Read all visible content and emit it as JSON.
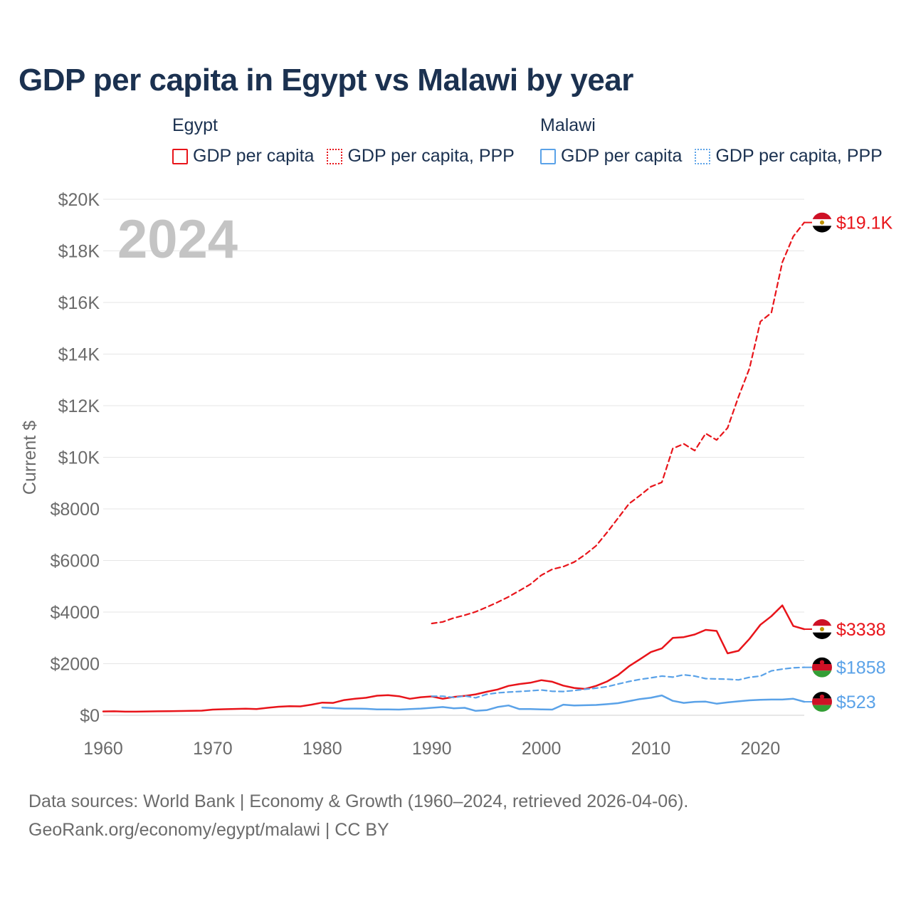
{
  "title": "GDP per capita in Egypt vs Malawi by year",
  "colors": {
    "egypt": "#e8141a",
    "malawi": "#5aa2e8",
    "axis_text": "#6b6b6b",
    "title": "#1b3150",
    "year_watermark": "#c4c4c4"
  },
  "legend": {
    "groups": [
      {
        "name": "Egypt",
        "items": [
          {
            "label": "GDP per capita",
            "style": "solid"
          },
          {
            "label": "GDP per capita, PPP",
            "style": "dotted"
          }
        ]
      },
      {
        "name": "Malawi",
        "items": [
          {
            "label": "GDP per capita",
            "style": "solid"
          },
          {
            "label": "GDP per capita, PPP",
            "style": "dotted"
          }
        ]
      }
    ]
  },
  "year_watermark": "2024",
  "footer": {
    "line1": "Data sources: World Bank | Economy & Growth (1960–2024, retrieved 2026-04-06).",
    "line2": "GeoRank.org/economy/egypt/malawi | CC BY"
  },
  "chart_data": {
    "type": "line",
    "ylabel": "Current $",
    "xlabel": "",
    "xlim": [
      1960,
      2024
    ],
    "ylim": [
      0,
      20000
    ],
    "x_ticks": [
      1960,
      1970,
      1980,
      1990,
      2000,
      2010,
      2020
    ],
    "x_tick_labels": [
      "1960",
      "1970",
      "1980",
      "1990",
      "2000",
      "2010",
      "2020"
    ],
    "y_ticks": [
      0,
      2000,
      4000,
      6000,
      8000,
      10000,
      12000,
      14000,
      16000,
      18000,
      20000
    ],
    "y_tick_labels": [
      "$0",
      "$2000",
      "$4000",
      "$6000",
      "$8000",
      "$10K",
      "$12K",
      "$14K",
      "$16K",
      "$18K",
      "$20K"
    ],
    "grid": true,
    "series": [
      {
        "name": "Egypt GDP per capita",
        "country": "egypt",
        "style": "solid",
        "end_label": "$3338",
        "points": [
          [
            1960,
            150
          ],
          [
            1961,
            155
          ],
          [
            1962,
            140
          ],
          [
            1963,
            140
          ],
          [
            1964,
            148
          ],
          [
            1965,
            155
          ],
          [
            1966,
            160
          ],
          [
            1967,
            165
          ],
          [
            1968,
            170
          ],
          [
            1969,
            180
          ],
          [
            1970,
            220
          ],
          [
            1971,
            235
          ],
          [
            1972,
            245
          ],
          [
            1973,
            255
          ],
          [
            1974,
            240
          ],
          [
            1975,
            290
          ],
          [
            1976,
            330
          ],
          [
            1977,
            350
          ],
          [
            1978,
            345
          ],
          [
            1979,
            410
          ],
          [
            1980,
            490
          ],
          [
            1981,
            480
          ],
          [
            1982,
            590
          ],
          [
            1983,
            640
          ],
          [
            1984,
            680
          ],
          [
            1985,
            760
          ],
          [
            1986,
            780
          ],
          [
            1987,
            740
          ],
          [
            1988,
            640
          ],
          [
            1989,
            700
          ],
          [
            1990,
            730
          ],
          [
            1991,
            640
          ],
          [
            1992,
            710
          ],
          [
            1993,
            750
          ],
          [
            1994,
            810
          ],
          [
            1995,
            910
          ],
          [
            1996,
            1000
          ],
          [
            1997,
            1140
          ],
          [
            1998,
            1210
          ],
          [
            1999,
            1260
          ],
          [
            2000,
            1360
          ],
          [
            2001,
            1300
          ],
          [
            2002,
            1150
          ],
          [
            2003,
            1060
          ],
          [
            2004,
            1020
          ],
          [
            2005,
            1140
          ],
          [
            2006,
            1310
          ],
          [
            2007,
            1560
          ],
          [
            2008,
            1900
          ],
          [
            2009,
            2170
          ],
          [
            2010,
            2450
          ],
          [
            2011,
            2590
          ],
          [
            2012,
            3000
          ],
          [
            2013,
            3030
          ],
          [
            2014,
            3130
          ],
          [
            2015,
            3310
          ],
          [
            2016,
            3270
          ],
          [
            2017,
            2400
          ],
          [
            2018,
            2500
          ],
          [
            2019,
            2960
          ],
          [
            2020,
            3510
          ],
          [
            2021,
            3840
          ],
          [
            2022,
            4260
          ],
          [
            2023,
            3460
          ],
          [
            2024,
            3338
          ]
        ]
      },
      {
        "name": "Egypt GDP per capita, PPP",
        "country": "egypt",
        "style": "dashed",
        "end_label": "$19.1K",
        "points": [
          [
            1990,
            3560
          ],
          [
            1991,
            3620
          ],
          [
            1992,
            3770
          ],
          [
            1993,
            3880
          ],
          [
            1994,
            4010
          ],
          [
            1995,
            4190
          ],
          [
            1996,
            4380
          ],
          [
            1997,
            4590
          ],
          [
            1998,
            4830
          ],
          [
            1999,
            5080
          ],
          [
            2000,
            5430
          ],
          [
            2001,
            5660
          ],
          [
            2002,
            5760
          ],
          [
            2003,
            5940
          ],
          [
            2004,
            6230
          ],
          [
            2005,
            6570
          ],
          [
            2006,
            7090
          ],
          [
            2007,
            7640
          ],
          [
            2008,
            8200
          ],
          [
            2009,
            8520
          ],
          [
            2010,
            8860
          ],
          [
            2011,
            9030
          ],
          [
            2012,
            10340
          ],
          [
            2013,
            10520
          ],
          [
            2014,
            10260
          ],
          [
            2015,
            10920
          ],
          [
            2016,
            10670
          ],
          [
            2017,
            11140
          ],
          [
            2018,
            12350
          ],
          [
            2019,
            13440
          ],
          [
            2020,
            15260
          ],
          [
            2021,
            15600
          ],
          [
            2022,
            17560
          ],
          [
            2023,
            18560
          ],
          [
            2024,
            19100
          ]
        ]
      },
      {
        "name": "Malawi GDP per capita, PPP",
        "country": "malawi",
        "style": "dashed",
        "end_label": "$1858",
        "points": [
          [
            1990,
            740
          ],
          [
            1991,
            740
          ],
          [
            1992,
            690
          ],
          [
            1993,
            750
          ],
          [
            1994,
            680
          ],
          [
            1995,
            810
          ],
          [
            1996,
            870
          ],
          [
            1997,
            900
          ],
          [
            1998,
            920
          ],
          [
            1999,
            950
          ],
          [
            2000,
            980
          ],
          [
            2001,
            930
          ],
          [
            2002,
            920
          ],
          [
            2003,
            960
          ],
          [
            2004,
            1010
          ],
          [
            2005,
            1050
          ],
          [
            2006,
            1110
          ],
          [
            2007,
            1210
          ],
          [
            2008,
            1310
          ],
          [
            2009,
            1390
          ],
          [
            2010,
            1450
          ],
          [
            2011,
            1520
          ],
          [
            2012,
            1480
          ],
          [
            2013,
            1570
          ],
          [
            2014,
            1520
          ],
          [
            2015,
            1420
          ],
          [
            2016,
            1410
          ],
          [
            2017,
            1400
          ],
          [
            2018,
            1370
          ],
          [
            2019,
            1470
          ],
          [
            2020,
            1520
          ],
          [
            2021,
            1720
          ],
          [
            2022,
            1790
          ],
          [
            2023,
            1840
          ],
          [
            2024,
            1858
          ]
        ]
      },
      {
        "name": "Malawi GDP per capita",
        "country": "malawi",
        "style": "solid",
        "end_label": "$523",
        "points": [
          [
            1980,
            300
          ],
          [
            1981,
            280
          ],
          [
            1982,
            260
          ],
          [
            1983,
            260
          ],
          [
            1984,
            250
          ],
          [
            1985,
            230
          ],
          [
            1986,
            230
          ],
          [
            1987,
            220
          ],
          [
            1988,
            240
          ],
          [
            1989,
            260
          ],
          [
            1990,
            290
          ],
          [
            1991,
            320
          ],
          [
            1992,
            270
          ],
          [
            1993,
            290
          ],
          [
            1994,
            170
          ],
          [
            1995,
            200
          ],
          [
            1996,
            320
          ],
          [
            1997,
            380
          ],
          [
            1998,
            240
          ],
          [
            1999,
            240
          ],
          [
            2000,
            230
          ],
          [
            2001,
            220
          ],
          [
            2002,
            410
          ],
          [
            2003,
            380
          ],
          [
            2004,
            390
          ],
          [
            2005,
            400
          ],
          [
            2006,
            430
          ],
          [
            2007,
            470
          ],
          [
            2008,
            550
          ],
          [
            2009,
            630
          ],
          [
            2010,
            680
          ],
          [
            2011,
            770
          ],
          [
            2012,
            560
          ],
          [
            2013,
            480
          ],
          [
            2014,
            520
          ],
          [
            2015,
            530
          ],
          [
            2016,
            450
          ],
          [
            2017,
            500
          ],
          [
            2018,
            540
          ],
          [
            2019,
            580
          ],
          [
            2020,
            600
          ],
          [
            2021,
            610
          ],
          [
            2022,
            610
          ],
          [
            2023,
            640
          ],
          [
            2024,
            523
          ]
        ]
      }
    ]
  }
}
